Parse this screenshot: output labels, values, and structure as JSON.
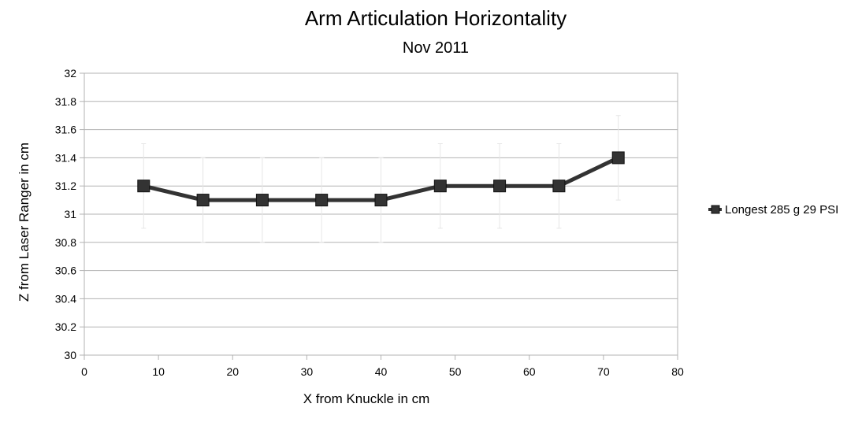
{
  "chart_data": {
    "type": "line",
    "title": "Arm Articulation Horizontality",
    "subtitle": "Nov 2011",
    "xlabel": "X from Knuckle in cm",
    "ylabel": "Z from Laser Ranger in cm",
    "xlim": [
      0,
      80
    ],
    "ylim": [
      30,
      32
    ],
    "x_ticks": [
      "0",
      "10",
      "20",
      "30",
      "40",
      "50",
      "60",
      "70",
      "80"
    ],
    "y_ticks": [
      "30",
      "30.2",
      "30.4",
      "30.6",
      "30.8",
      "31",
      "31.2",
      "31.4",
      "31.6",
      "31.8",
      "32"
    ],
    "grid": "horizontal",
    "legend_position": "right",
    "series": [
      {
        "name": "Longest 285 g 29 PSI",
        "color": "#333333",
        "marker": "square",
        "x": [
          8,
          16,
          24,
          32,
          40,
          48,
          56,
          64,
          72
        ],
        "y": [
          31.2,
          31.1,
          31.1,
          31.1,
          31.1,
          31.2,
          31.2,
          31.2,
          31.4
        ],
        "error": [
          0.3,
          0.3,
          0.3,
          0.3,
          0.3,
          0.3,
          0.3,
          0.3,
          0.3
        ]
      }
    ]
  }
}
